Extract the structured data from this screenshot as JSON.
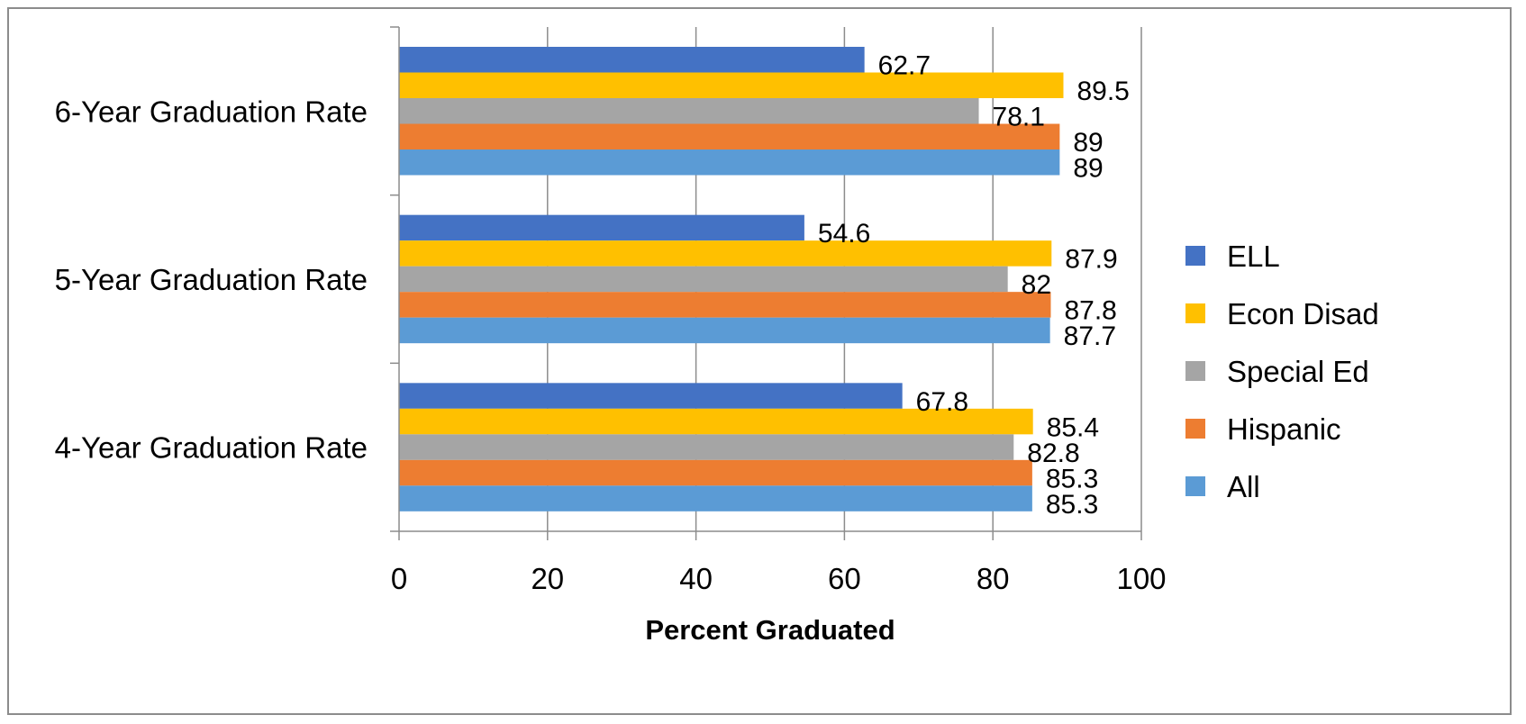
{
  "chart_data": {
    "type": "bar",
    "orientation": "horizontal",
    "title": "",
    "xlabel": "Percent Graduated",
    "ylabel": "",
    "xlim": [
      0,
      100
    ],
    "xticks": [
      0,
      20,
      40,
      60,
      80,
      100
    ],
    "grid": true,
    "legend_position": "right",
    "categories": [
      "6-Year Graduation Rate",
      "5-Year Graduation Rate",
      "4-Year Graduation Rate"
    ],
    "series": [
      {
        "name": "ELL",
        "color": "#4472C4",
        "values": [
          62.7,
          54.6,
          67.8
        ],
        "labels": [
          "62.7",
          "54.6",
          "67.8"
        ]
      },
      {
        "name": "Econ Disad",
        "color": "#FFC000",
        "values": [
          89.5,
          87.9,
          85.4
        ],
        "labels": [
          "89.5",
          "87.9",
          "85.4"
        ]
      },
      {
        "name": "Special Ed",
        "color": "#A5A5A5",
        "values": [
          78.1,
          82,
          82.8
        ],
        "labels": [
          "78.1",
          "82",
          "82.8"
        ]
      },
      {
        "name": "Hispanic",
        "color": "#ED7D31",
        "values": [
          89,
          87.8,
          85.3
        ],
        "labels": [
          "89",
          "87.8",
          "85.3"
        ]
      },
      {
        "name": "All",
        "color": "#5B9BD5",
        "values": [
          89,
          87.7,
          85.3
        ],
        "labels": [
          "89",
          "87.7",
          "85.3"
        ]
      }
    ]
  }
}
